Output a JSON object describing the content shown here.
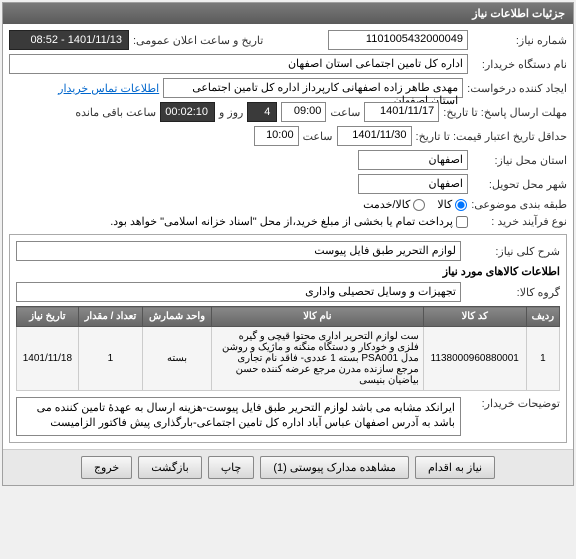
{
  "panel_title": "جزئیات اطلاعات نیاز",
  "header": {
    "req_number_label": "شماره نیاز:",
    "req_number": "1101005432000049",
    "announce_label": "تاریخ و ساعت اعلان عمومی:",
    "announce_value": "1401/11/13 - 08:52",
    "buyer_label": "نام دستگاه خریدار:",
    "buyer_value": "اداره کل تامین اجتماعی استان اصفهان",
    "requester_label": "ایجاد کننده درخواست:",
    "requester_value": "مهدی طاهر زاده اصفهانی کارپرداز اداره کل تامین اجتماعی استان اصفهان",
    "contact_link": "اطلاعات تماس خریدار",
    "deadline_label": "مهلت ارسال پاسخ: تا تاریخ:",
    "deadline_date": "1401/11/17",
    "time_label": "ساعت",
    "deadline_time": "09:00",
    "day_label": "روز و",
    "remaining_days": "4",
    "remaining_time": "00:02:10",
    "remaining_label": "ساعت باقی مانده",
    "validity_label": "حداقل تاریخ اعتبار قیمت: تا تاریخ:",
    "validity_date": "1401/11/30",
    "validity_time": "10:00",
    "delivery_city_label": "شهر محل تحویل:",
    "delivery_city": "اصفهان",
    "need_city_label": "استان محل نیاز:",
    "need_city": "اصفهان",
    "classification_label": "طبقه بندی موضوعی:",
    "radio_goods": "کالا",
    "radio_service": "کالا/خدمت",
    "process_label": "نوع فرآیند خرید :",
    "process_note": "پرداخت تمام یا بخشی از مبلغ خرید،از محل \"اسناد خزانه اسلامی\" خواهد بود."
  },
  "detail": {
    "general_label": "شرح کلی نیاز:",
    "general_value": "لوازم التحریر طبق فایل پیوست",
    "section_title": "اطلاعات کالاهای مورد نیاز",
    "group_label": "گروه کالا:",
    "group_value": "تجهیزات و وسایل تحصیلی واداری"
  },
  "table": {
    "columns": [
      "ردیف",
      "کد کالا",
      "نام کالا",
      "واحد شمارش",
      "تعداد / مقدار",
      "تاریخ نیاز"
    ],
    "rows": [
      [
        "1",
        "1138000960880001",
        "ست لوازم التحریر اداری محتوا قیچی و گیره فلزی و خودکار و دستگاه منگنه و ماژیک و روشن مدل PSA001 بسته 1 عددی- فاقد نام تجاری مرجع سازنده مدرن مرجع عرضه کننده حسن بیاضیان بنیسی",
        "بسته",
        "1",
        "1401/11/18"
      ]
    ]
  },
  "buyer_notes": {
    "label": "توضیحات خریدار:",
    "value": "ایرانکد مشابه می باشد لوازم التحریر طبق فایل پیوست-هزینه ارسال به عهدۀ تامین کننده می باشد به آدرس اصفهان عباس آباد اداره کل تامین اجتماعی-بارگذاری پیش فاکتور الزامیست"
  },
  "buttons": {
    "need_action": "نیاز به اقدام",
    "view_attachments": "مشاهده مدارک پیوستی (1)",
    "print": "چاپ",
    "back": "بازگشت",
    "exit": "خروج"
  }
}
